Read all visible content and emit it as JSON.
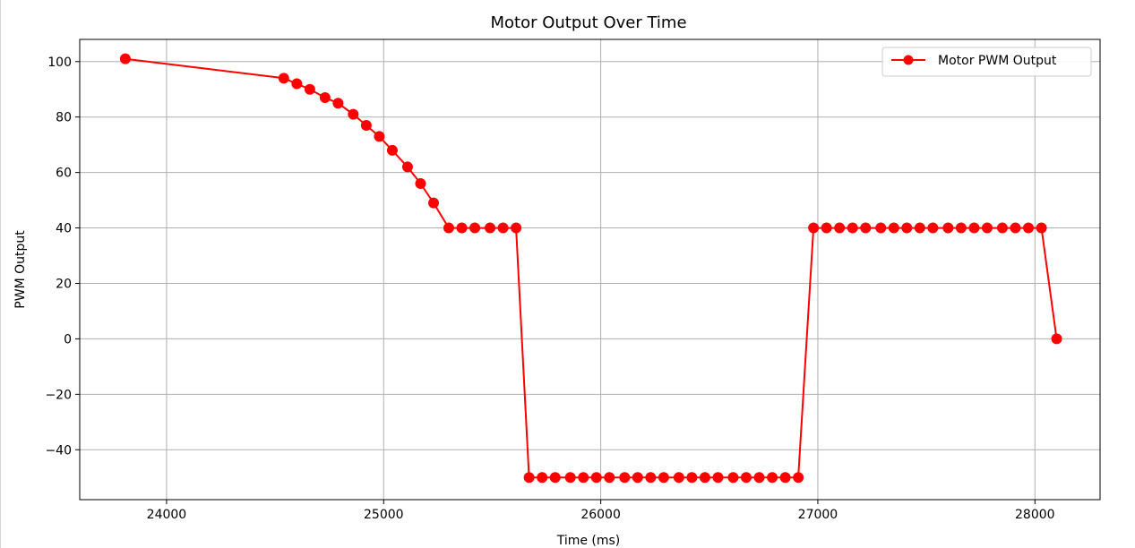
{
  "chart_data": {
    "type": "line",
    "title": "Motor Output Over Time",
    "xlabel": "Time (ms)",
    "ylabel": "PWM Output",
    "xlim": [
      23600,
      28300
    ],
    "ylim": [
      -58,
      108
    ],
    "xticks": [
      24000,
      25000,
      26000,
      27000,
      28000
    ],
    "yticks": [
      -40,
      -20,
      0,
      20,
      40,
      60,
      80,
      100
    ],
    "grid": true,
    "legend_position": "top-right",
    "series": [
      {
        "name": "Motor PWM Output",
        "color": "#ff0000",
        "marker": "circle",
        "x": [
          23810,
          24540,
          24600,
          24660,
          24730,
          24790,
          24860,
          24920,
          24980,
          25040,
          25110,
          25170,
          25230,
          25300,
          25360,
          25420,
          25490,
          25550,
          25610,
          25670,
          25730,
          25790,
          25860,
          25920,
          25980,
          26040,
          26110,
          26170,
          26230,
          26290,
          26360,
          26420,
          26480,
          26540,
          26610,
          26670,
          26730,
          26790,
          26850,
          26910,
          26980,
          27040,
          27100,
          27160,
          27220,
          27290,
          27350,
          27410,
          27470,
          27530,
          27600,
          27660,
          27720,
          27780,
          27850,
          27910,
          27970,
          28030,
          28100
        ],
        "y": [
          101,
          94,
          92,
          90,
          87,
          85,
          81,
          77,
          73,
          68,
          62,
          56,
          49,
          40,
          40,
          40,
          40,
          40,
          40,
          -50,
          -50,
          -50,
          -50,
          -50,
          -50,
          -50,
          -50,
          -50,
          -50,
          -50,
          -50,
          -50,
          -50,
          -50,
          -50,
          -50,
          -50,
          -50,
          -50,
          -50,
          40,
          40,
          40,
          40,
          40,
          40,
          40,
          40,
          40,
          40,
          40,
          40,
          40,
          40,
          40,
          40,
          40,
          40,
          0
        ]
      }
    ]
  }
}
